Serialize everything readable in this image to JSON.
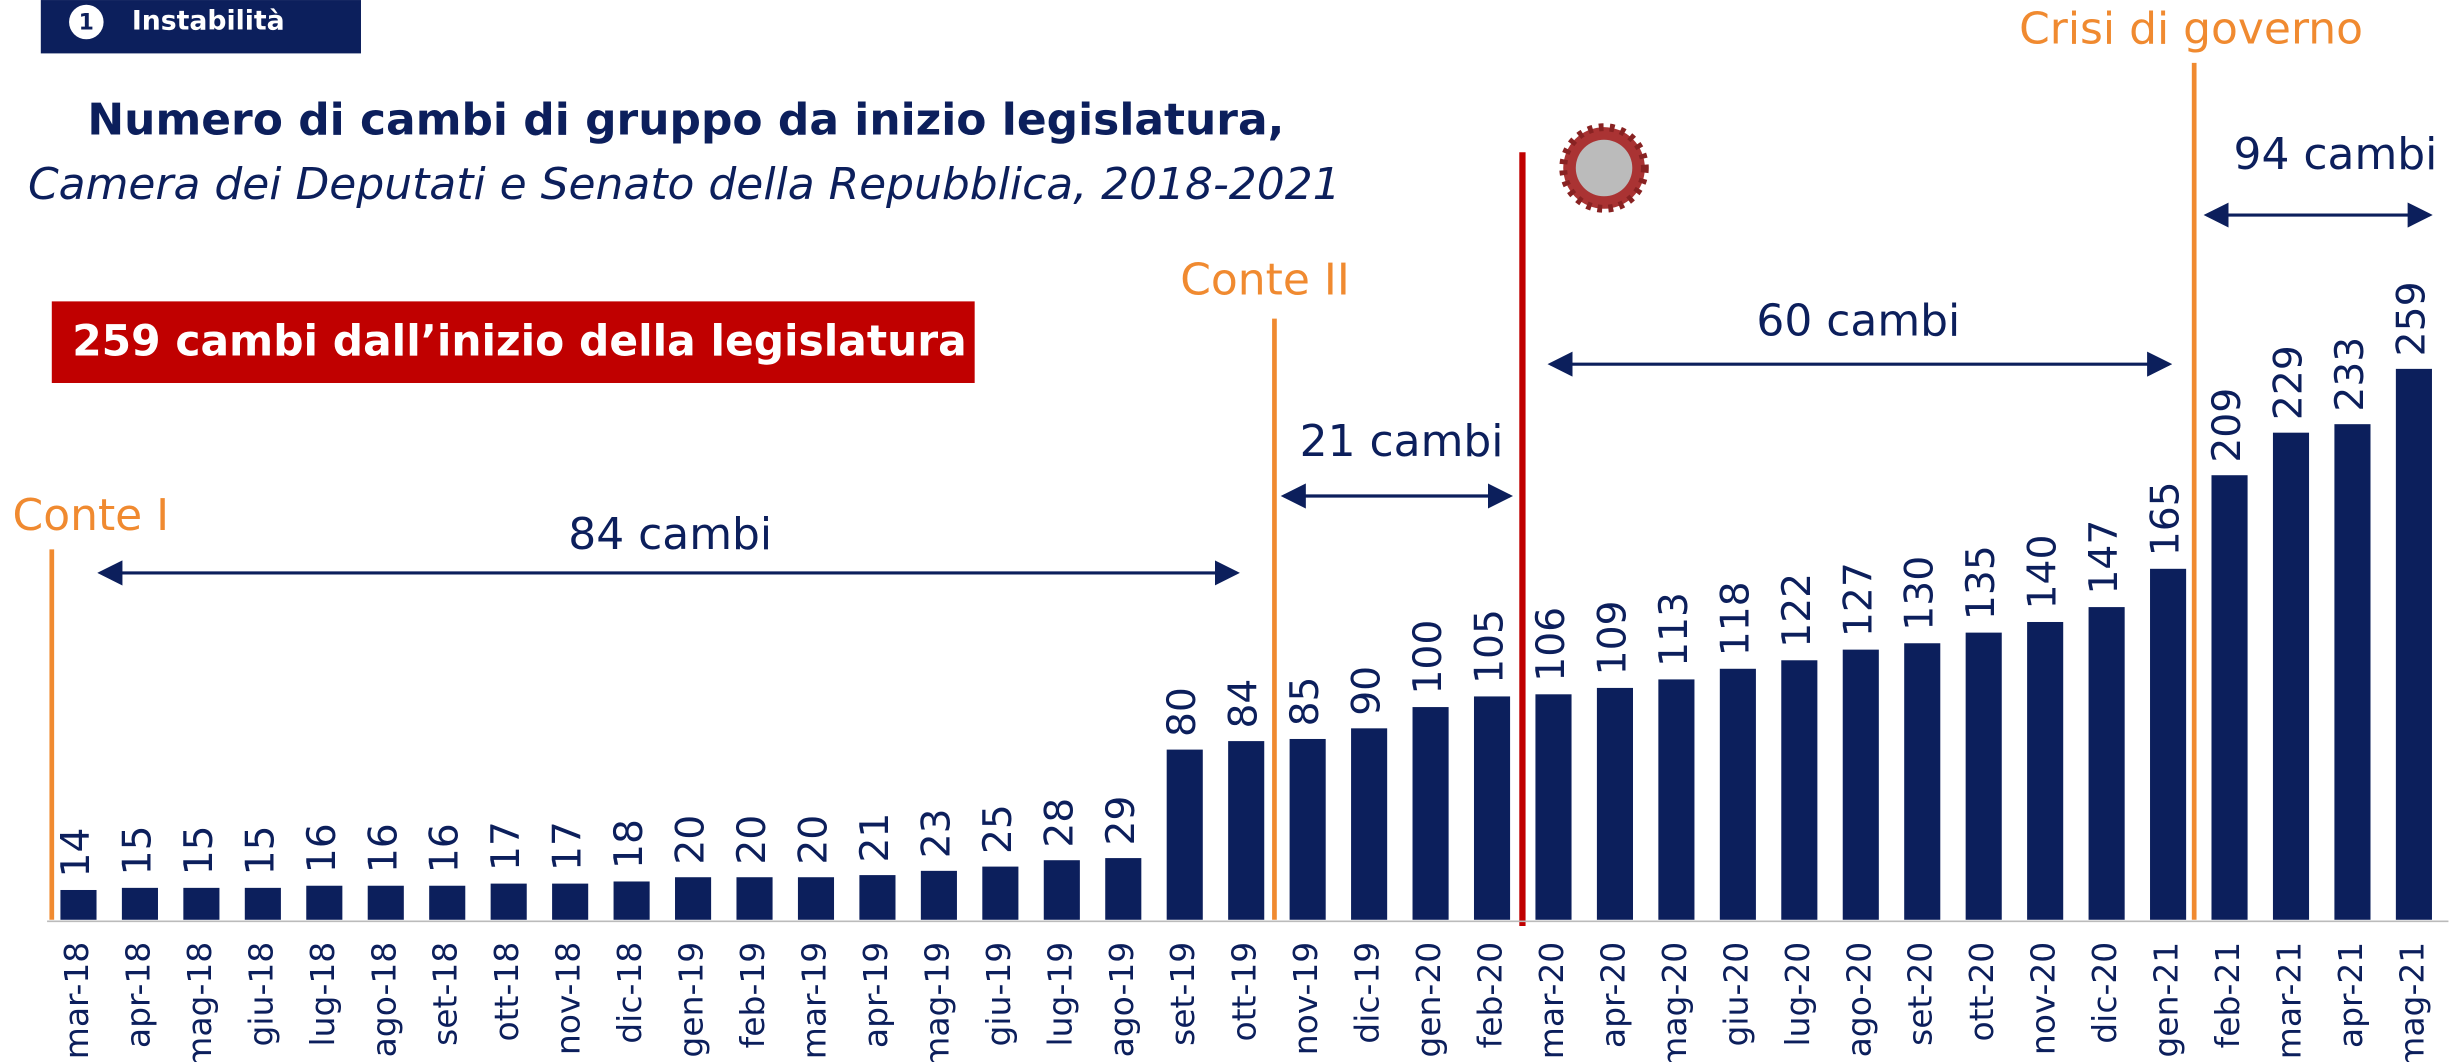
{
  "header": {
    "badge": "1",
    "section": "Instabilità"
  },
  "chart_data": {
    "type": "bar",
    "title": "Numero di cambi di gruppo da inizio legislatura,",
    "subtitle": "Camera dei Deputati e Senato della Repubblica, 2018-2021",
    "highlight": "259 cambi dall’inizio della legislatura",
    "categories": [
      "mar-18",
      "apr-18",
      "mag-18",
      "giu-18",
      "lug-18",
      "ago-18",
      "set-18",
      "ott-18",
      "nov-18",
      "dic-18",
      "gen-19",
      "feb-19",
      "mar-19",
      "apr-19",
      "mag-19",
      "giu-19",
      "lug-19",
      "ago-19",
      "set-19",
      "ott-19",
      "nov-19",
      "dic-19",
      "gen-20",
      "feb-20",
      "mar-20",
      "apr-20",
      "mag-20",
      "giu-20",
      "lug-20",
      "ago-20",
      "set-20",
      "ott-20",
      "nov-20",
      "dic-20",
      "gen-21",
      "feb-21",
      "mar-21",
      "apr-21",
      "mag-21"
    ],
    "values": [
      14,
      15,
      15,
      15,
      16,
      16,
      16,
      17,
      17,
      18,
      20,
      20,
      20,
      21,
      23,
      25,
      28,
      29,
      80,
      84,
      85,
      90,
      100,
      105,
      106,
      109,
      113,
      118,
      122,
      127,
      130,
      135,
      140,
      147,
      165,
      209,
      229,
      233,
      259
    ],
    "color": "#0c1f5c",
    "annotations": [
      "Conte I",
      "84 cambi",
      "Conte II",
      "21 cambi",
      "60 cambi",
      "Crisi di governo",
      "94 cambi"
    ]
  }
}
